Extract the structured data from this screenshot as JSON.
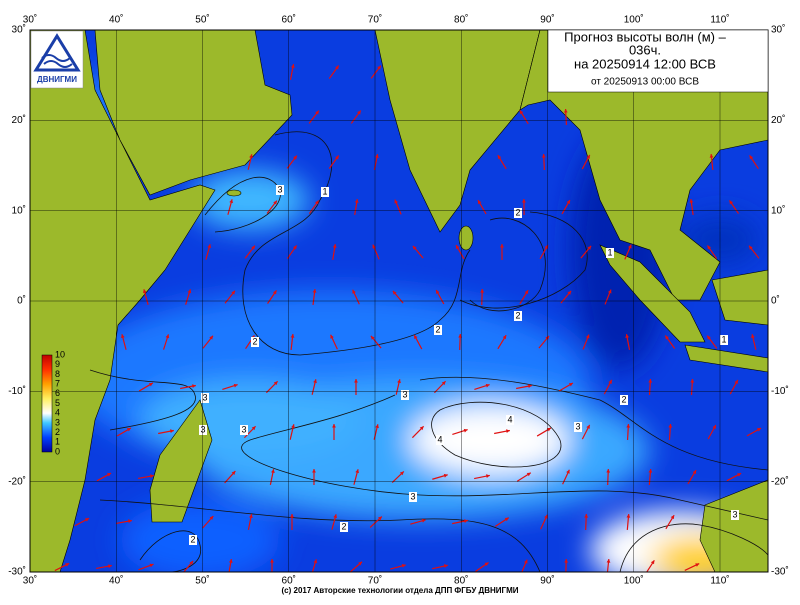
{
  "header": {
    "title_lines": [
      "Прогноз высоты волн (м) –",
      "036ч.",
      "на 20250914 12:00 ВСВ",
      "от 20250913 00:00 ВСВ"
    ]
  },
  "logo": {
    "text": "ДВНИГМИ"
  },
  "map": {
    "lon_ticks": [
      {
        "value": 30,
        "label": "30˚"
      },
      {
        "value": 40,
        "label": "40˚"
      },
      {
        "value": 50,
        "label": "50˚"
      },
      {
        "value": 60,
        "label": "60˚"
      },
      {
        "value": 70,
        "label": "70˚"
      },
      {
        "value": 80,
        "label": "80˚"
      },
      {
        "value": 90,
        "label": "90˚"
      },
      {
        "value": 100,
        "label": "100˚"
      },
      {
        "value": 110,
        "label": "110˚"
      }
    ],
    "lat_ticks": [
      {
        "value": 30,
        "label": "30˚"
      },
      {
        "value": 20,
        "label": "20˚"
      },
      {
        "value": 10,
        "label": "10˚"
      },
      {
        "value": 0,
        "label": "0˚"
      },
      {
        "value": -10,
        "label": "-10˚"
      },
      {
        "value": -20,
        "label": "-20˚"
      },
      {
        "value": -30,
        "label": "-30˚"
      }
    ]
  },
  "colorbar": {
    "labels": [
      10,
      9,
      8,
      7,
      6,
      5,
      4,
      3,
      2,
      1,
      0
    ]
  },
  "contour_labels": [
    "3",
    "1",
    "2",
    "1",
    "2",
    "2",
    "2",
    "3",
    "3",
    "4",
    "4",
    "3",
    "2",
    "1",
    "3",
    "3",
    "3",
    "2",
    "2",
    "3"
  ],
  "footer": {
    "copyright": "(c) 2017 Авторские технологии отдела ДПП ФГБУ ДВНИГМИ"
  }
}
